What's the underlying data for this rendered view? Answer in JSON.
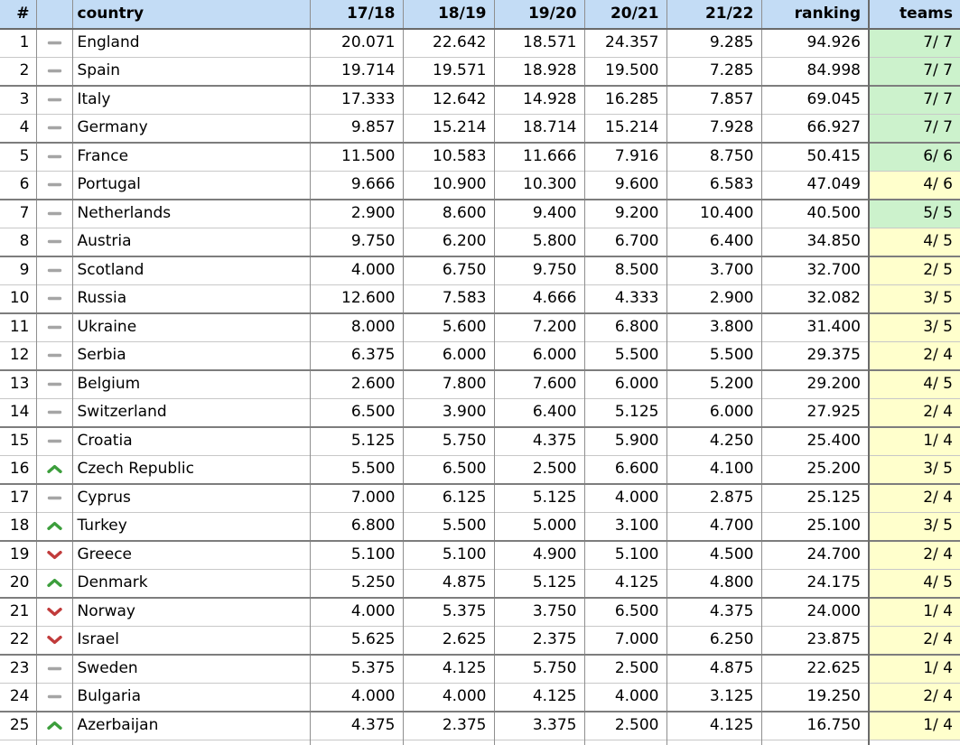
{
  "table": {
    "columns": [
      {
        "id": "rank",
        "label": "#"
      },
      {
        "id": "trend",
        "label": ""
      },
      {
        "id": "country",
        "label": "country"
      },
      {
        "id": "season-17-18",
        "label": "17/18"
      },
      {
        "id": "season-18-19",
        "label": "18/19"
      },
      {
        "id": "season-19-20",
        "label": "19/20"
      },
      {
        "id": "season-20-21",
        "label": "20/21"
      },
      {
        "id": "season-21-22",
        "label": "21/22"
      },
      {
        "id": "ranking",
        "label": "ranking"
      },
      {
        "id": "teams",
        "label": "teams"
      }
    ],
    "rows": [
      {
        "rank": "1",
        "trend": "same",
        "country": "England",
        "values": [
          "20.071",
          "22.642",
          "18.571",
          "24.357",
          "9.285"
        ],
        "ranking": "94.926",
        "teams": "7/ 7",
        "teams_color": "green"
      },
      {
        "rank": "2",
        "trend": "same",
        "country": "Spain",
        "values": [
          "19.714",
          "19.571",
          "18.928",
          "19.500",
          "7.285"
        ],
        "ranking": "84.998",
        "teams": "7/ 7",
        "teams_color": "green"
      },
      {
        "rank": "3",
        "trend": "same",
        "country": "Italy",
        "values": [
          "17.333",
          "12.642",
          "14.928",
          "16.285",
          "7.857"
        ],
        "ranking": "69.045",
        "teams": "7/ 7",
        "teams_color": "green"
      },
      {
        "rank": "4",
        "trend": "same",
        "country": "Germany",
        "values": [
          "9.857",
          "15.214",
          "18.714",
          "15.214",
          "7.928"
        ],
        "ranking": "66.927",
        "teams": "7/ 7",
        "teams_color": "green"
      },
      {
        "rank": "5",
        "trend": "same",
        "country": "France",
        "values": [
          "11.500",
          "10.583",
          "11.666",
          "7.916",
          "8.750"
        ],
        "ranking": "50.415",
        "teams": "6/ 6",
        "teams_color": "green"
      },
      {
        "rank": "6",
        "trend": "same",
        "country": "Portugal",
        "values": [
          "9.666",
          "10.900",
          "10.300",
          "9.600",
          "6.583"
        ],
        "ranking": "47.049",
        "teams": "4/ 6",
        "teams_color": "yellow"
      },
      {
        "rank": "7",
        "trend": "same",
        "country": "Netherlands",
        "values": [
          "2.900",
          "8.600",
          "9.400",
          "9.200",
          "10.400"
        ],
        "ranking": "40.500",
        "teams": "5/ 5",
        "teams_color": "green"
      },
      {
        "rank": "8",
        "trend": "same",
        "country": "Austria",
        "values": [
          "9.750",
          "6.200",
          "5.800",
          "6.700",
          "6.400"
        ],
        "ranking": "34.850",
        "teams": "4/ 5",
        "teams_color": "yellow"
      },
      {
        "rank": "9",
        "trend": "same",
        "country": "Scotland",
        "values": [
          "4.000",
          "6.750",
          "9.750",
          "8.500",
          "3.700"
        ],
        "ranking": "32.700",
        "teams": "2/ 5",
        "teams_color": "yellow"
      },
      {
        "rank": "10",
        "trend": "same",
        "country": "Russia",
        "values": [
          "12.600",
          "7.583",
          "4.666",
          "4.333",
          "2.900"
        ],
        "ranking": "32.082",
        "teams": "3/ 5",
        "teams_color": "yellow"
      },
      {
        "rank": "11",
        "trend": "same",
        "country": "Ukraine",
        "values": [
          "8.000",
          "5.600",
          "7.200",
          "6.800",
          "3.800"
        ],
        "ranking": "31.400",
        "teams": "3/ 5",
        "teams_color": "yellow"
      },
      {
        "rank": "12",
        "trend": "same",
        "country": "Serbia",
        "values": [
          "6.375",
          "6.000",
          "6.000",
          "5.500",
          "5.500"
        ],
        "ranking": "29.375",
        "teams": "2/ 4",
        "teams_color": "yellow"
      },
      {
        "rank": "13",
        "trend": "same",
        "country": "Belgium",
        "values": [
          "2.600",
          "7.800",
          "7.600",
          "6.000",
          "5.200"
        ],
        "ranking": "29.200",
        "teams": "4/ 5",
        "teams_color": "yellow"
      },
      {
        "rank": "14",
        "trend": "same",
        "country": "Switzerland",
        "values": [
          "6.500",
          "3.900",
          "6.400",
          "5.125",
          "6.000"
        ],
        "ranking": "27.925",
        "teams": "2/ 4",
        "teams_color": "yellow"
      },
      {
        "rank": "15",
        "trend": "same",
        "country": "Croatia",
        "values": [
          "5.125",
          "5.750",
          "4.375",
          "5.900",
          "4.250"
        ],
        "ranking": "25.400",
        "teams": "1/ 4",
        "teams_color": "yellow"
      },
      {
        "rank": "16",
        "trend": "up",
        "country": "Czech Republic",
        "values": [
          "5.500",
          "6.500",
          "2.500",
          "6.600",
          "4.100"
        ],
        "ranking": "25.200",
        "teams": "3/ 5",
        "teams_color": "yellow"
      },
      {
        "rank": "17",
        "trend": "same",
        "country": "Cyprus",
        "values": [
          "7.000",
          "6.125",
          "5.125",
          "4.000",
          "2.875"
        ],
        "ranking": "25.125",
        "teams": "2/ 4",
        "teams_color": "yellow"
      },
      {
        "rank": "18",
        "trend": "up",
        "country": "Turkey",
        "values": [
          "6.800",
          "5.500",
          "5.000",
          "3.100",
          "4.700"
        ],
        "ranking": "25.100",
        "teams": "3/ 5",
        "teams_color": "yellow"
      },
      {
        "rank": "19",
        "trend": "down",
        "country": "Greece",
        "values": [
          "5.100",
          "5.100",
          "4.900",
          "5.100",
          "4.500"
        ],
        "ranking": "24.700",
        "teams": "2/ 4",
        "teams_color": "yellow"
      },
      {
        "rank": "20",
        "trend": "up",
        "country": "Denmark",
        "values": [
          "5.250",
          "4.875",
          "5.125",
          "4.125",
          "4.800"
        ],
        "ranking": "24.175",
        "teams": "4/ 5",
        "teams_color": "yellow"
      },
      {
        "rank": "21",
        "trend": "down",
        "country": "Norway",
        "values": [
          "4.000",
          "5.375",
          "3.750",
          "6.500",
          "4.375"
        ],
        "ranking": "24.000",
        "teams": "1/ 4",
        "teams_color": "yellow"
      },
      {
        "rank": "22",
        "trend": "down",
        "country": "Israel",
        "values": [
          "5.625",
          "2.625",
          "2.375",
          "7.000",
          "6.250"
        ],
        "ranking": "23.875",
        "teams": "2/ 4",
        "teams_color": "yellow"
      },
      {
        "rank": "23",
        "trend": "same",
        "country": "Sweden",
        "values": [
          "5.375",
          "4.125",
          "5.750",
          "2.500",
          "4.875"
        ],
        "ranking": "22.625",
        "teams": "1/ 4",
        "teams_color": "yellow"
      },
      {
        "rank": "24",
        "trend": "same",
        "country": "Bulgaria",
        "values": [
          "4.000",
          "4.000",
          "4.125",
          "4.000",
          "3.125"
        ],
        "ranking": "19.250",
        "teams": "2/ 4",
        "teams_color": "yellow"
      },
      {
        "rank": "25",
        "trend": "up",
        "country": "Azerbaijan",
        "values": [
          "4.375",
          "2.375",
          "3.375",
          "2.500",
          "4.125"
        ],
        "ranking": "16.750",
        "teams": "1/ 4",
        "teams_color": "yellow"
      }
    ]
  },
  "colors": {
    "header_bg": "#c3dcf5",
    "teams_green_bg": "#ccf2cc",
    "teams_yellow_bg": "#ffffcc",
    "trend_up": "#3c9e3c",
    "trend_down": "#c13b3b",
    "trend_same": "#a5a5a5"
  }
}
